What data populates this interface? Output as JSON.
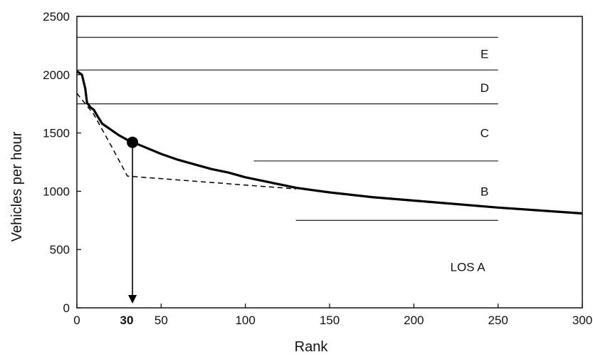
{
  "chart_data": {
    "type": "line",
    "xlabel": "Rank",
    "ylabel": "Vehicles per hour",
    "xlim": [
      0,
      300
    ],
    "ylim": [
      0,
      2500
    ],
    "x_ticks": [
      0,
      50,
      100,
      150,
      200,
      250,
      300
    ],
    "y_ticks": [
      0,
      500,
      1000,
      1500,
      2000,
      2500
    ],
    "highlight_tick": {
      "value": 30,
      "label": "30"
    },
    "series": [
      {
        "style": "solid",
        "points": [
          [
            0,
            2030
          ],
          [
            3,
            2000
          ],
          [
            5,
            1880
          ],
          [
            6,
            1760
          ],
          [
            8,
            1720
          ],
          [
            10,
            1700
          ],
          [
            12,
            1650
          ],
          [
            15,
            1580
          ],
          [
            20,
            1530
          ],
          [
            25,
            1480
          ],
          [
            30,
            1440
          ],
          [
            35,
            1410
          ],
          [
            40,
            1380
          ],
          [
            50,
            1320
          ],
          [
            60,
            1270
          ],
          [
            70,
            1230
          ],
          [
            80,
            1190
          ],
          [
            90,
            1160
          ],
          [
            100,
            1120
          ],
          [
            110,
            1090
          ],
          [
            120,
            1060
          ],
          [
            130,
            1030
          ],
          [
            140,
            1010
          ],
          [
            150,
            990
          ],
          [
            175,
            950
          ],
          [
            200,
            920
          ],
          [
            225,
            890
          ],
          [
            250,
            860
          ],
          [
            275,
            835
          ],
          [
            300,
            810
          ]
        ]
      },
      {
        "style": "dashed",
        "points": [
          [
            0,
            1840
          ],
          [
            10,
            1660
          ],
          [
            20,
            1400
          ],
          [
            30,
            1130
          ],
          [
            130,
            1020
          ]
        ]
      }
    ],
    "marker": {
      "x": 33,
      "y": 1420
    },
    "arrow": {
      "x": 33,
      "from_y": 1420,
      "to_y": 0
    },
    "level_lines": [
      {
        "y": 2320,
        "x_start": 0,
        "x_end": 250
      },
      {
        "y": 2040,
        "x_start": 0,
        "x_end": 250
      },
      {
        "y": 1750,
        "x_start": 0,
        "x_end": 250
      },
      {
        "y": 1260,
        "x_start": 105,
        "x_end": 250
      },
      {
        "y": 750,
        "x_start": 130,
        "x_end": 250
      }
    ],
    "annotations": [
      {
        "text": "E",
        "x": 242,
        "y": 2180
      },
      {
        "text": "D",
        "x": 242,
        "y": 1890
      },
      {
        "text": "C",
        "x": 242,
        "y": 1500
      },
      {
        "text": "B",
        "x": 242,
        "y": 1000
      },
      {
        "text": "LOS A",
        "x": 232,
        "y": 350
      }
    ],
    "grid": false,
    "colors": {
      "line": "#000000",
      "level": "#333333"
    }
  }
}
